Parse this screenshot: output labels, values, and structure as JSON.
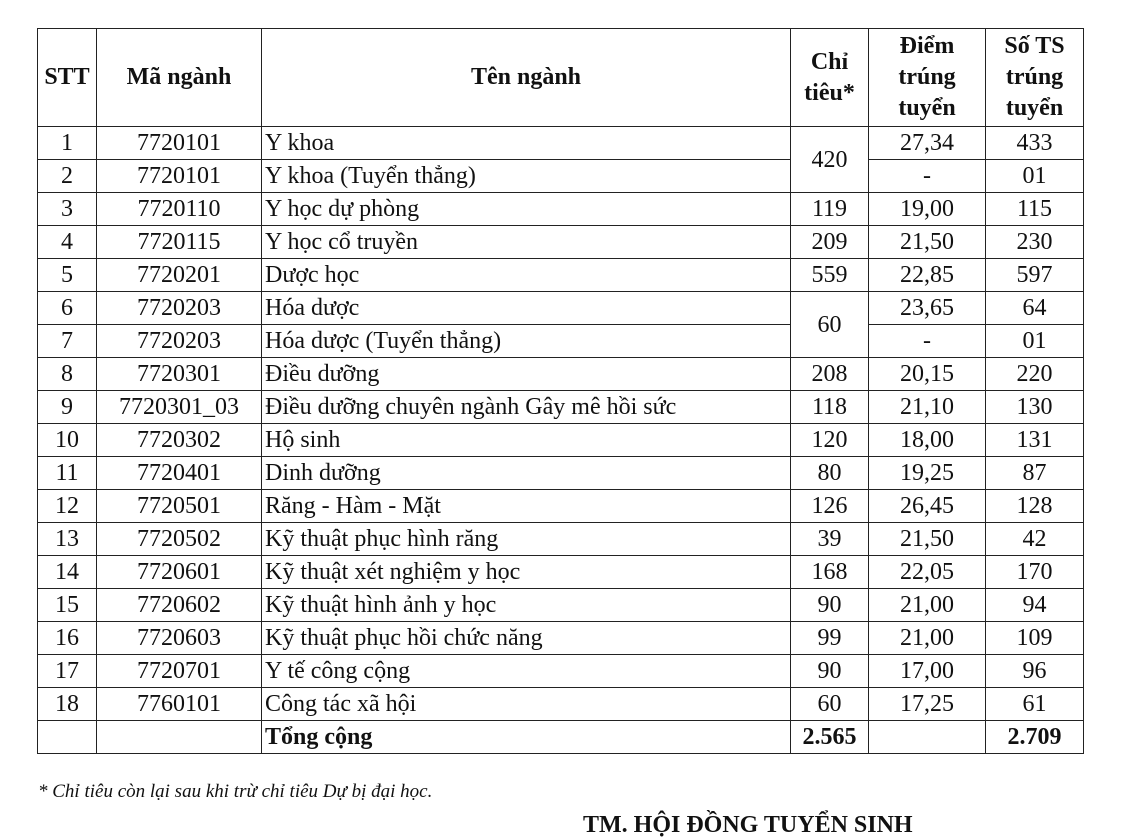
{
  "table": {
    "header": [
      "STT",
      "Mã ngành",
      "Tên ngành",
      "Chỉ tiêu*",
      "Điểm trúng tuyển",
      "Số TS trúng tuyển"
    ],
    "rows": [
      {
        "stt": "1",
        "code": "7720101",
        "name": "Y khoa",
        "quota": "420",
        "score": "27,34",
        "count": "433"
      },
      {
        "stt": "2",
        "code": "7720101",
        "name": "Y khoa (Tuyển thẳng)",
        "score": "-",
        "count": "01"
      },
      {
        "stt": "3",
        "code": "7720110",
        "name": "Y học dự phòng",
        "quota": "119",
        "score": "19,00",
        "count": "115"
      },
      {
        "stt": "4",
        "code": "7720115",
        "name": "Y học cổ truyền",
        "quota": "209",
        "score": "21,50",
        "count": "230"
      },
      {
        "stt": "5",
        "code": "7720201",
        "name": "Dược học",
        "quota": "559",
        "score": "22,85",
        "count": "597"
      },
      {
        "stt": "6",
        "code": "7720203",
        "name": "Hóa dược",
        "quota": "60",
        "score": "23,65",
        "count": "64"
      },
      {
        "stt": "7",
        "code": "7720203",
        "name": "Hóa dược (Tuyển thẳng)",
        "score": "-",
        "count": "01"
      },
      {
        "stt": "8",
        "code": "7720301",
        "name": "Điều dưỡng",
        "quota": "208",
        "score": "20,15",
        "count": "220"
      },
      {
        "stt": "9",
        "code": "7720301_03",
        "name": "Điều dưỡng chuyên ngành Gây mê hồi sức",
        "quota": "118",
        "score": "21,10",
        "count": "130"
      },
      {
        "stt": "10",
        "code": "7720302",
        "name": "Hộ sinh",
        "quota": "120",
        "score": "18,00",
        "count": "131"
      },
      {
        "stt": "11",
        "code": "7720401",
        "name": "Dinh dưỡng",
        "quota": "80",
        "score": "19,25",
        "count": "87"
      },
      {
        "stt": "12",
        "code": "7720501",
        "name": "Răng - Hàm - Mặt",
        "quota": "126",
        "score": "26,45",
        "count": "128"
      },
      {
        "stt": "13",
        "code": "7720502",
        "name": "Kỹ thuật phục hình răng",
        "quota": "39",
        "score": "21,50",
        "count": "42"
      },
      {
        "stt": "14",
        "code": "7720601",
        "name": "Kỹ thuật xét nghiệm y học",
        "quota": "168",
        "score": "22,05",
        "count": "170"
      },
      {
        "stt": "15",
        "code": "7720602",
        "name": "Kỹ thuật hình ảnh y học",
        "quota": "90",
        "score": "21,00",
        "count": "94"
      },
      {
        "stt": "16",
        "code": "7720603",
        "name": "Kỹ thuật phục hồi chức năng",
        "quota": "99",
        "score": "21,00",
        "count": "109"
      },
      {
        "stt": "17",
        "code": "7720701",
        "name": "Y tế công cộng",
        "quota": "90",
        "score": "17,00",
        "count": "96"
      },
      {
        "stt": "18",
        "code": "7760101",
        "name": "Công tác xã hội",
        "quota": "60",
        "score": "17,25",
        "count": "61"
      }
    ],
    "total": {
      "label": "Tổng cộng",
      "quota": "2.565",
      "count": "2.709"
    }
  },
  "footnote": "* Chỉ tiêu còn lại sau khi trừ chỉ tiêu Dự bị đại học.",
  "signature": "TM. HỘI ĐỒNG TUYỂN SINH"
}
